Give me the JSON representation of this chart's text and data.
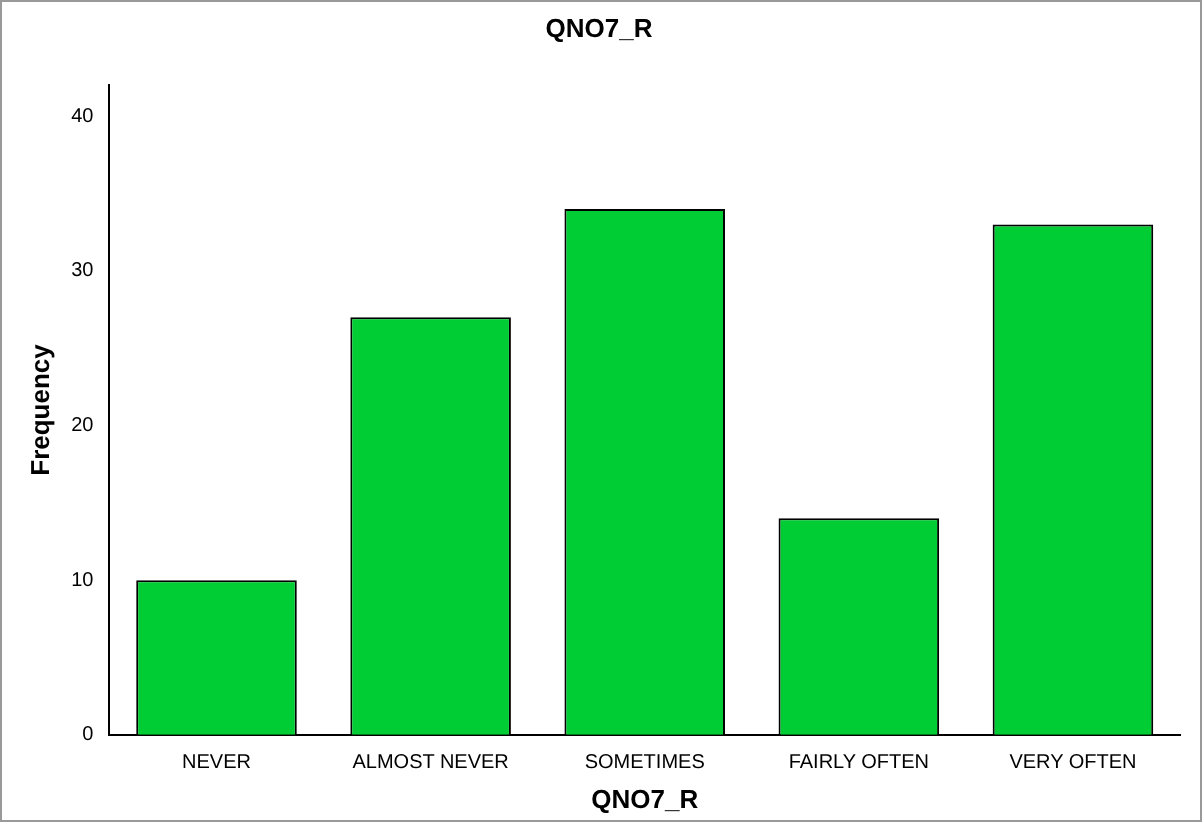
{
  "chart_data": {
    "type": "bar",
    "title": "QNO7_R",
    "xlabel": "QNO7_R",
    "ylabel": "Frequency",
    "categories": [
      "NEVER",
      "ALMOST NEVER",
      "SOMETIMES",
      "FAIRLY OFTEN",
      "VERY OFTEN"
    ],
    "values": [
      10,
      27,
      34,
      14,
      33
    ],
    "color": "#00cc33",
    "ylim": [
      0,
      42
    ],
    "yticks": [
      0,
      10,
      20,
      30,
      40
    ],
    "grid": false,
    "legend": false
  }
}
